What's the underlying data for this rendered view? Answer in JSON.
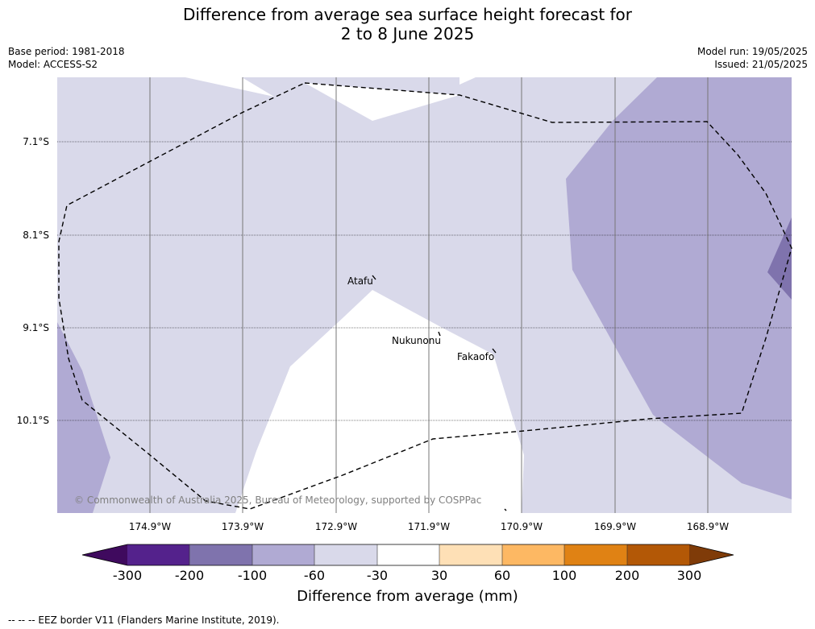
{
  "title": {
    "line1": "Difference from average sea surface height forecast for",
    "line2": "2 to 8 June 2025"
  },
  "info_left": {
    "base_period": "Base period: 1981-2018",
    "model": "Model: ACCESS-S2"
  },
  "info_right": {
    "model_run": "Model run: 19/05/2025",
    "issued": "Issued: 21/05/2025"
  },
  "lat_labels": [
    "7.1°S",
    "8.1°S",
    "9.1°S",
    "10.1°S"
  ],
  "lon_labels": [
    "174.9°W",
    "173.9°W",
    "172.9°W",
    "171.9°W",
    "170.9°W",
    "169.9°W",
    "168.9°W"
  ],
  "places": [
    {
      "name": "Atafu"
    },
    {
      "name": "Nukunonu"
    },
    {
      "name": "Fakaofo"
    }
  ],
  "copyright": "© Commonwealth of Australia 2025, Bureau of Meteorology, supported by COSPPac",
  "colorbar": {
    "label": "Difference from average (mm)",
    "ticks": [
      "-300",
      "-200",
      "-100",
      "-60",
      "-30",
      "30",
      "60",
      "100",
      "200",
      "300"
    ],
    "colors": [
      "#3f0a5e",
      "#54228c",
      "#7f73ad",
      "#b0aad3",
      "#d9d9ea",
      "#ffffff",
      "#fee0b6",
      "#fdb863",
      "#e08214",
      "#b35806",
      "#7f3b08"
    ]
  },
  "eez_note": "-- -- -- EEZ border V11 (Flanders Marine Institute, 2019)."
}
